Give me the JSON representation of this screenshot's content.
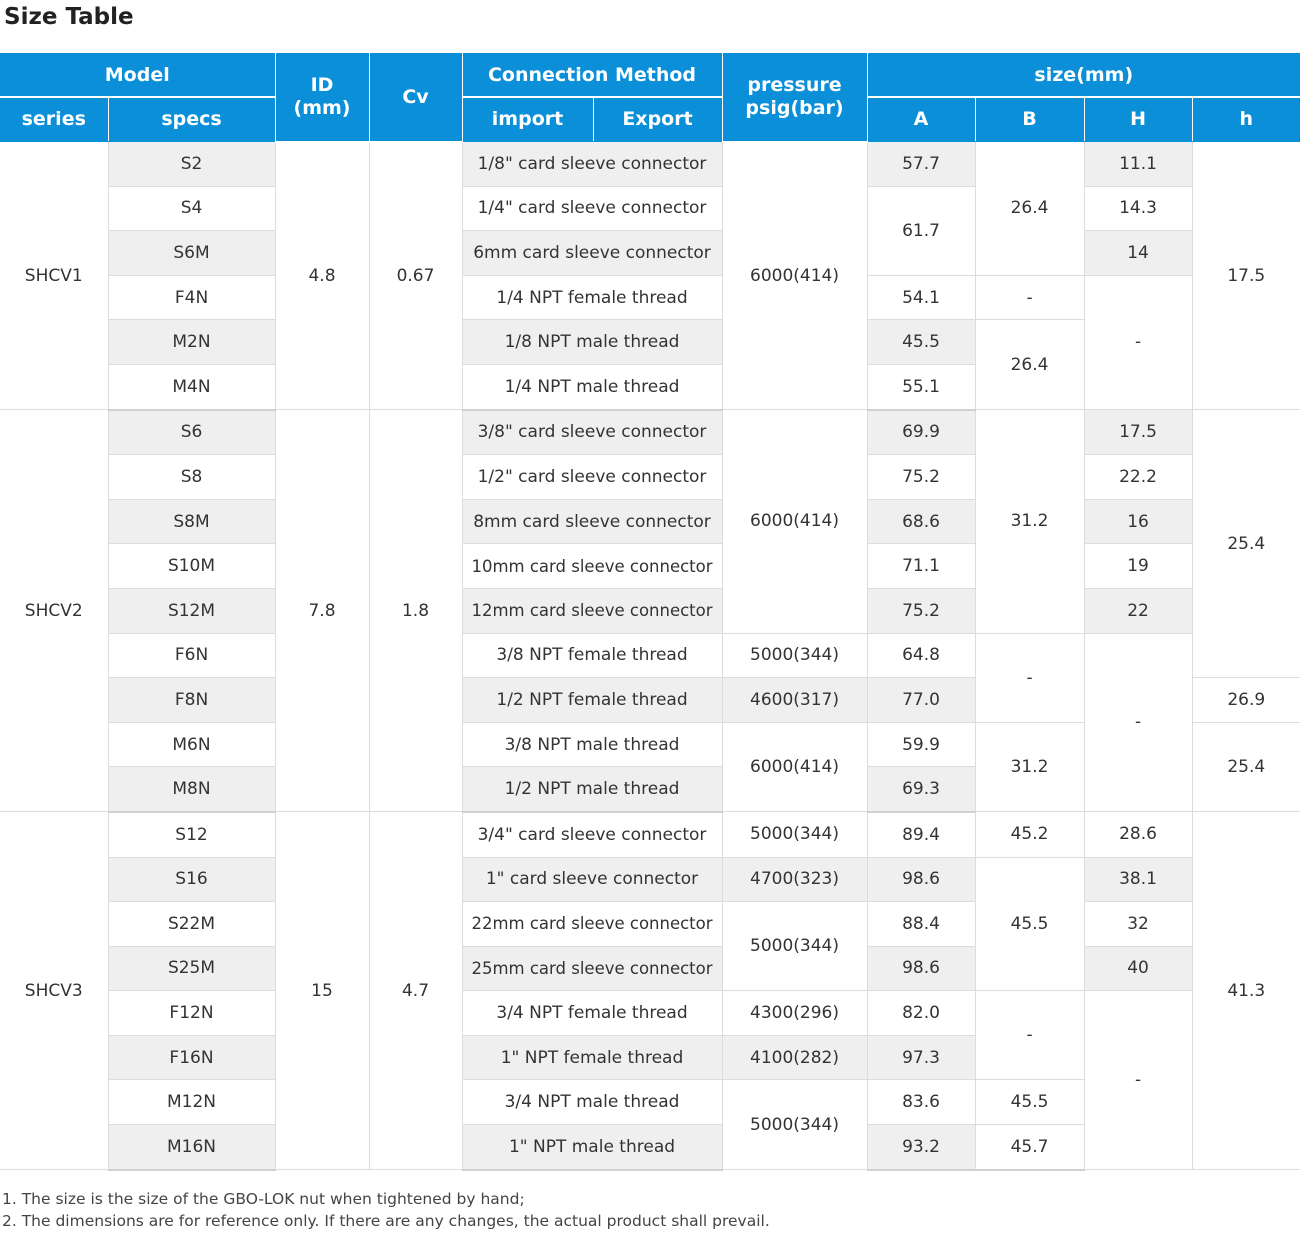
{
  "title": "Size Table",
  "headers": {
    "model": "Model",
    "series": "series",
    "specs": "specs",
    "id": "ID\n(mm)",
    "cv": "Cv",
    "connection": "Connection Method",
    "import": "import",
    "export": "Export",
    "pressure": "pressure\npsig(bar)",
    "size": "size(mm)",
    "a": "A",
    "b": "B",
    "h_upper": "H",
    "h_lower": "h"
  },
  "groups": [
    {
      "series": "SHCV1",
      "id": "4.8",
      "cv": "0.67",
      "rows": [
        {
          "spec": "S2",
          "conn": "1/8\" card sleeve connector",
          "a": "57.7"
        },
        {
          "spec": "S4",
          "conn": "1/4\" card sleeve connector",
          "a": ""
        },
        {
          "spec": "S6M",
          "conn": "6mm card sleeve connector",
          "a": ""
        },
        {
          "spec": "F4N",
          "conn": "1/4 NPT female thread",
          "a": "54.1"
        },
        {
          "spec": "M2N",
          "conn": "1/8 NPT male thread",
          "a": "45.5"
        },
        {
          "spec": "M4N",
          "conn": "1/4 NPT male thread",
          "a": "55.1"
        }
      ],
      "a_merged": "61.7",
      "pressure": [
        "6000(414)"
      ],
      "b": [
        "26.4",
        "-",
        "26.4"
      ],
      "H": [
        "11.1",
        "14.3",
        "14",
        "-"
      ],
      "h": [
        "17.5"
      ]
    },
    {
      "series": "SHCV2",
      "id": "7.8",
      "cv": "1.8",
      "rows": [
        {
          "spec": "S6",
          "conn": "3/8\" card sleeve connector",
          "a": "69.9"
        },
        {
          "spec": "S8",
          "conn": "1/2\" card sleeve connector",
          "a": "75.2"
        },
        {
          "spec": "S8M",
          "conn": "8mm card sleeve connector",
          "a": "68.6"
        },
        {
          "spec": "S10M",
          "conn": "10mm card sleeve connector",
          "a": "71.1"
        },
        {
          "spec": "S12M",
          "conn": "12mm card sleeve connector",
          "a": "75.2"
        },
        {
          "spec": "F6N",
          "conn": "3/8 NPT female thread",
          "a": "64.8"
        },
        {
          "spec": "F8N",
          "conn": "1/2 NPT female thread",
          "a": "77.0"
        },
        {
          "spec": "M6N",
          "conn": "3/8 NPT male thread",
          "a": "59.9"
        },
        {
          "spec": "M8N",
          "conn": "1/2 NPT male thread",
          "a": "69.3"
        }
      ],
      "pressure": [
        "6000(414)",
        "5000(344)",
        "4600(317)",
        "6000(414)"
      ],
      "b": [
        "31.2",
        "-",
        "31.2"
      ],
      "H": [
        "17.5",
        "22.2",
        "16",
        "19",
        "22",
        "-"
      ],
      "h": [
        "25.4",
        "26.9",
        "25.4"
      ]
    },
    {
      "series": "SHCV3",
      "id": "15",
      "cv": "4.7",
      "rows": [
        {
          "spec": "S12",
          "conn": "3/4\" card sleeve connector",
          "a": "89.4"
        },
        {
          "spec": "S16",
          "conn": "1\" card sleeve connector",
          "a": "98.6"
        },
        {
          "spec": "S22M",
          "conn": "22mm card sleeve connector",
          "a": "88.4"
        },
        {
          "spec": "S25M",
          "conn": "25mm card sleeve connector",
          "a": "98.6"
        },
        {
          "spec": "F12N",
          "conn": "3/4 NPT female thread",
          "a": "82.0"
        },
        {
          "spec": "F16N",
          "conn": "1\" NPT female thread",
          "a": "97.3"
        },
        {
          "spec": "M12N",
          "conn": "3/4 NPT male thread",
          "a": "83.6"
        },
        {
          "spec": "M16N",
          "conn": "1\" NPT male thread",
          "a": "93.2"
        }
      ],
      "pressure": [
        "5000(344)",
        "4700(323)",
        "5000(344)",
        "4300(296)",
        "4100(282)",
        "5000(344)"
      ],
      "b": [
        "45.2",
        "45.5",
        "-",
        "45.5",
        "45.7"
      ],
      "H": [
        "28.6",
        "38.1",
        "32",
        "40",
        "-"
      ],
      "h": [
        "41.3"
      ]
    }
  ],
  "footnotes": [
    "1. The size is the size of the GBO-LOK nut when tightened by hand;",
    "2. The dimensions are for reference only. If there are any changes, the actual product shall prevail."
  ]
}
